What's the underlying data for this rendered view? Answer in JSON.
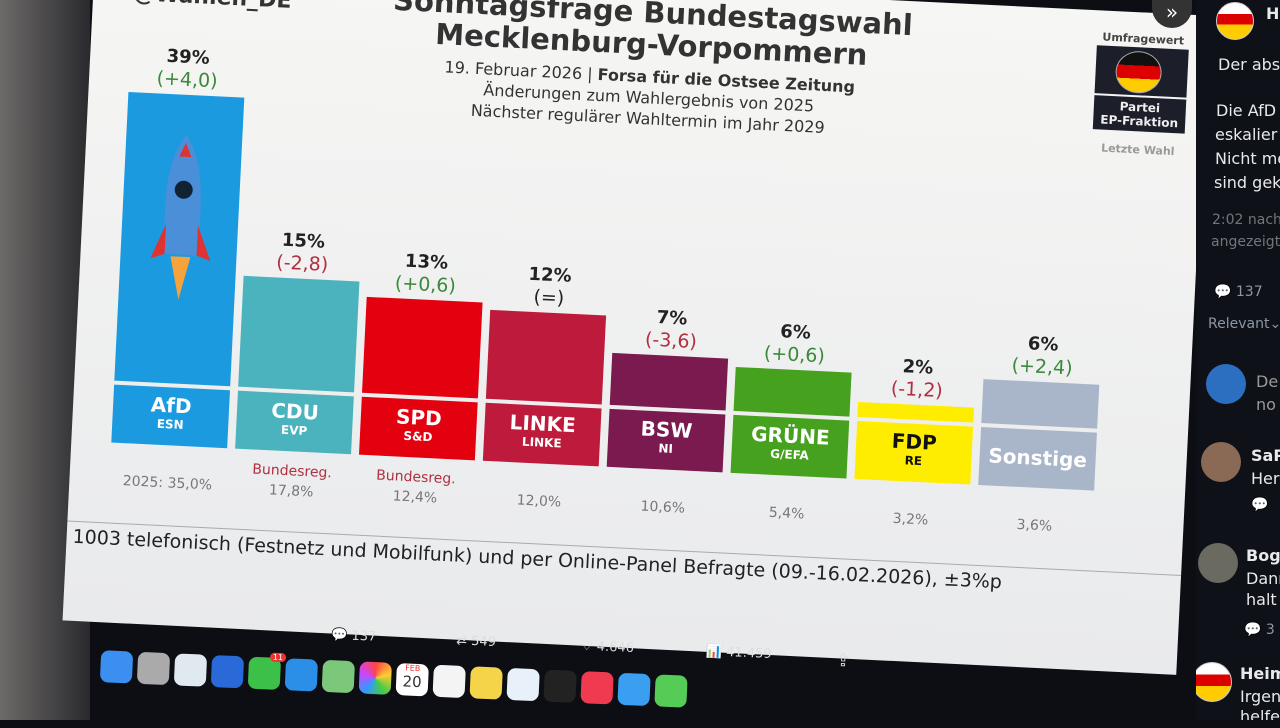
{
  "post_image": {
    "handle": "@Wahlen_DE",
    "title_line1": "Sonntagsfrage Bundestagswahl",
    "title_line2": "Mecklenburg-Vorpommern",
    "date": "19. Februar 2026",
    "pollster": "Forsa für die Ostsee Zeitung",
    "subtitle2": "Änderungen zum Wahlergebnis von 2025",
    "subtitle3": "Nächster regulärer Wahltermin im Jahr 2029",
    "legend_top": "Umfragewert",
    "legend_party": "Partei",
    "legend_group": "EP-Fraktion",
    "legend_last": "Letzte Wahl",
    "footnote": "1003 telefonisch (Festnetz und Mobilfunk) und per Online-Panel Befragte (09.-16.02.2026), ±3%p"
  },
  "chart_data": {
    "type": "bar",
    "title": "Sonntagsfrage Bundestagswahl Mecklenburg-Vorpommern",
    "categories": [
      "AfD",
      "CDU",
      "SPD",
      "LINKE",
      "BSW",
      "GRÜNE",
      "FDP",
      "Sonstige"
    ],
    "groups": [
      "ESN",
      "EVP",
      "S&D",
      "LINKE",
      "NI",
      "G/EFA",
      "RE",
      ""
    ],
    "values": [
      39,
      15,
      13,
      12,
      7,
      6,
      2,
      6
    ],
    "value_labels": [
      "39%",
      "15%",
      "13%",
      "12%",
      "7%",
      "6%",
      "2%",
      "6%"
    ],
    "changes": [
      "(+4,0)",
      "(-2,8)",
      "(+0,6)",
      "(=)",
      "(-3,6)",
      "(+0,6)",
      "(-1,2)",
      "(+2,4)"
    ],
    "previous_labels": [
      "2025: 35,0%",
      "17,8%",
      "12,4%",
      "12,0%",
      "10,6%",
      "5,4%",
      "3,2%",
      "3,6%"
    ],
    "notes": [
      "",
      "Bundesreg.",
      "Bundesreg.",
      "",
      "",
      "",
      "",
      ""
    ],
    "colors": [
      "#1b9ae0",
      "#4bb3bd",
      "#e3000f",
      "#be1a3c",
      "#7b1a4f",
      "#46a21e",
      "#ffed00",
      "#a9b6ca"
    ],
    "label_text_colors": [
      "#ffffff",
      "#ffffff",
      "#ffffff",
      "#ffffff",
      "#ffffff",
      "#ffffff",
      "#111111",
      "#ffffff"
    ],
    "change_colors": {
      "positive": "#3a8a3a",
      "negative": "#b03040",
      "neutral": "#222222"
    },
    "ylim": [
      0,
      40
    ]
  },
  "sidebar": {
    "author_initial": "H",
    "text1": "Der abs",
    "text2a": "Die AfD",
    "text2b": "eskalier",
    "text2c": "Nicht me",
    "text2d": "sind gek",
    "time": "2:02 nach",
    "shown": "angezeigt",
    "reply_count": "137",
    "sort": "Relevant",
    "r1_text1": "De",
    "r1_text2": "no",
    "r2_name": "SaP",
    "r2_text": "Herr",
    "r3_name": "Bogi",
    "r3_text1": "Dann",
    "r3_text2": "halt z",
    "r3_replies": "3",
    "r4_name": "Heim",
    "r4_text1": "Irgenc",
    "r4_text2": "helfen"
  },
  "stats": {
    "replies": "137",
    "reposts": "549",
    "likes": "4.646",
    "views": "41.459"
  },
  "dock": {
    "calendar_month": "FEB",
    "calendar_day": "20",
    "messages_badge": "11"
  }
}
